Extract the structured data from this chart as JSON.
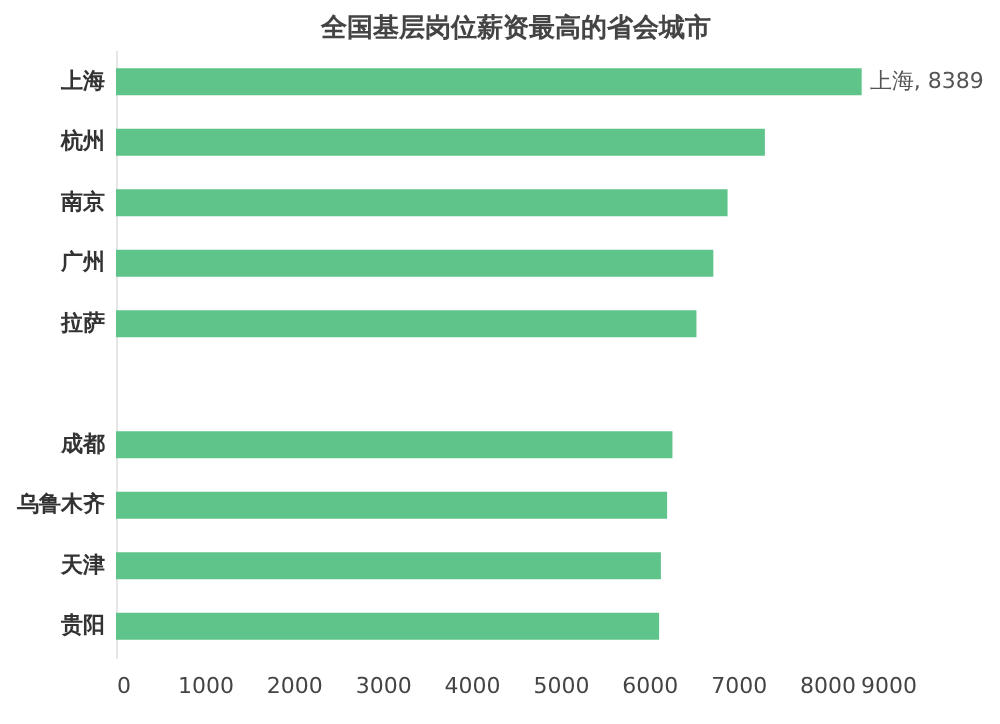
{
  "chart_data": {
    "type": "bar",
    "orientation": "horizontal",
    "title": "全国基层岗位薪资最高的省会城市",
    "categories": [
      "上海",
      "杭州",
      "南京",
      "广州",
      "拉萨",
      null,
      "成都",
      "乌鲁木齐",
      "天津",
      "贵阳"
    ],
    "values": [
      8389,
      7300,
      6880,
      6720,
      6530,
      null,
      6260,
      6200,
      6130,
      6110
    ],
    "value_labels": [
      "上海, 8389",
      null,
      null,
      null,
      null,
      null,
      null,
      null,
      null,
      null
    ],
    "color": "#5ec48a",
    "xlim": [
      0,
      9000
    ],
    "xticks": [
      0,
      1000,
      2000,
      3000,
      4000,
      5000,
      6000,
      7000,
      8000,
      9000
    ],
    "grid": false
  }
}
